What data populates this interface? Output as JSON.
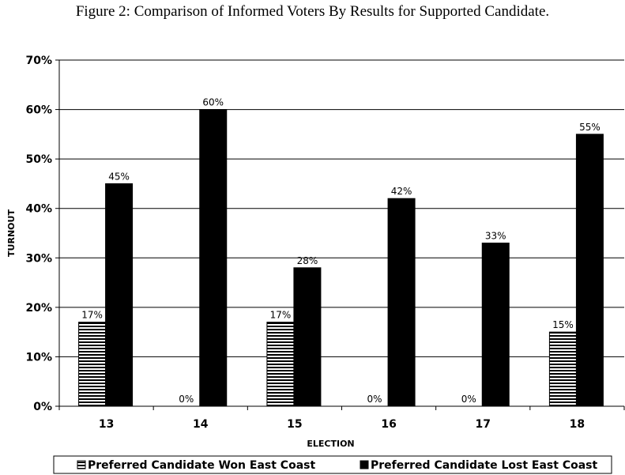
{
  "figure_title": "Figure 2: Comparison of Informed Voters By Results for Supported Candidate.",
  "chart_data": {
    "type": "bar",
    "title": "",
    "xlabel": "ELECTION",
    "ylabel": "TURNOUT",
    "categories": [
      "13",
      "14",
      "15",
      "16",
      "17",
      "18"
    ],
    "ylim": [
      0,
      70
    ],
    "y_ticks": [
      "0%",
      "10%",
      "20%",
      "30%",
      "40%",
      "50%",
      "60%",
      "70%"
    ],
    "grid": true,
    "legend_position": "bottom",
    "series": [
      {
        "name": "Preferred Candidate Won East Coast",
        "values": [
          17,
          0,
          17,
          0,
          0,
          15
        ],
        "labels": [
          "17%",
          "0%",
          "17%",
          "0%",
          "0%",
          "15%"
        ],
        "fill": "horizontal-stripes",
        "color": "#000000"
      },
      {
        "name": "Preferred Candidate Lost East Coast",
        "values": [
          45,
          60,
          28,
          42,
          33,
          55
        ],
        "labels": [
          "45%",
          "60%",
          "28%",
          "42%",
          "33%",
          "55%"
        ],
        "fill": "solid",
        "color": "#000000"
      }
    ]
  }
}
